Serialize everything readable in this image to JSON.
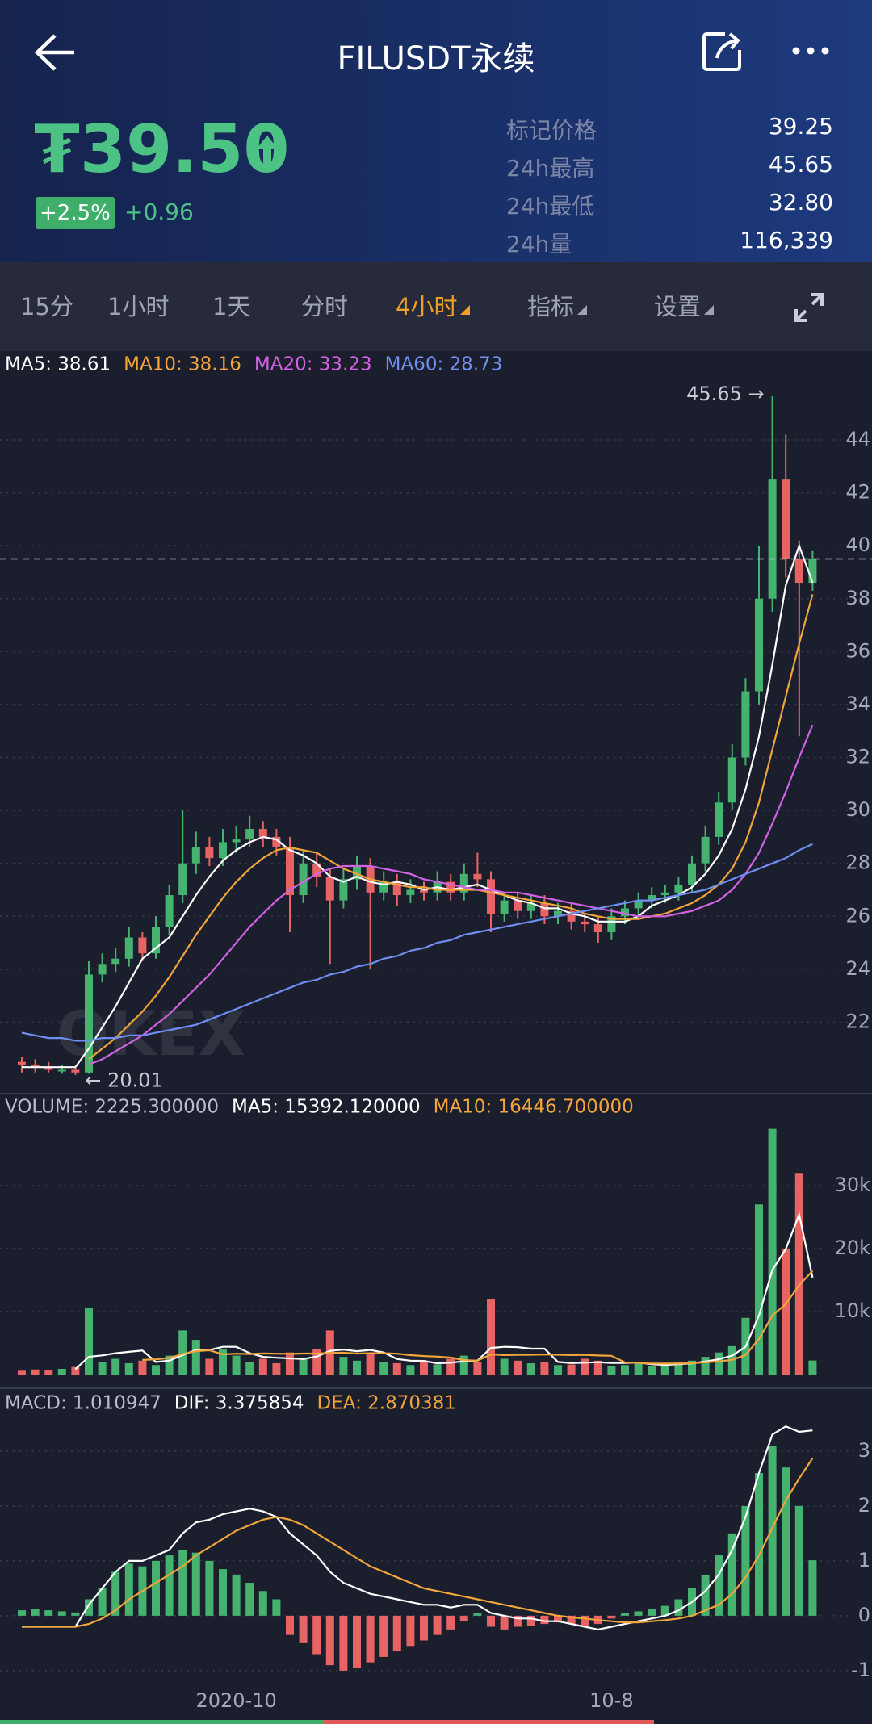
{
  "header": {
    "title": "FILUSDT永续"
  },
  "ticker": {
    "price": "₮39.50",
    "change_pct": "+2.5%",
    "change": "+0.96",
    "stats": [
      {
        "label": "标记价格",
        "value": "39.25"
      },
      {
        "label": "24h最高",
        "value": "45.65"
      },
      {
        "label": "24h最低",
        "value": "32.80"
      },
      {
        "label": "24h量",
        "value": "116,339"
      }
    ]
  },
  "tabs": [
    {
      "label": "15分",
      "dropdown": false
    },
    {
      "label": "1小时",
      "dropdown": false
    },
    {
      "label": "1天",
      "dropdown": false
    },
    {
      "label": "分时",
      "dropdown": false
    },
    {
      "label": "4小时",
      "dropdown": true
    },
    {
      "label": "指标",
      "dropdown": true
    },
    {
      "label": "设置",
      "dropdown": true
    }
  ],
  "active_tab": 4,
  "watermark": "OKEX",
  "chart_data": [
    {
      "type": "candlestick",
      "up_color": "#45b36f",
      "down_color": "#e86464",
      "current_price": 39.5,
      "annotations": [
        {
          "text": "45.65 →",
          "index": 56,
          "value": 45.65
        },
        {
          "text": "← 20.01",
          "index": 4,
          "value": 20.01
        }
      ],
      "open": [
        20.5,
        20.4,
        20.3,
        20.2,
        20.2,
        20.1,
        23.8,
        24.2,
        24.4,
        25.2,
        24.6,
        25.6,
        26.8,
        28.0,
        28.6,
        28.2,
        28.8,
        28.9,
        29.3,
        29.0,
        28.6,
        26.8,
        28.0,
        27.5,
        26.6,
        27.4,
        27.9,
        26.9,
        27.3,
        26.8,
        27.0,
        26.9,
        27.3,
        26.9,
        27.6,
        27.4,
        26.1,
        26.6,
        26.2,
        26.5,
        26.0,
        26.2,
        25.8,
        25.7,
        25.4,
        26.0,
        26.3,
        26.6,
        26.8,
        26.9,
        27.2,
        28.0,
        29.0,
        30.3,
        32.0,
        34.5,
        38.0,
        42.5,
        39.5,
        38.6
      ],
      "high": [
        20.7,
        20.6,
        20.5,
        20.4,
        20.3,
        24.3,
        24.6,
        24.8,
        25.6,
        25.4,
        26.0,
        27.2,
        30.0,
        29.2,
        29.0,
        29.3,
        29.4,
        29.8,
        29.6,
        29.3,
        29.0,
        28.5,
        28.4,
        27.8,
        27.8,
        28.3,
        28.2,
        27.7,
        27.6,
        27.4,
        27.3,
        27.7,
        27.6,
        28.0,
        28.4,
        27.7,
        26.9,
        26.9,
        26.8,
        26.8,
        26.5,
        26.5,
        26.1,
        26.0,
        26.3,
        26.6,
        26.9,
        27.1,
        27.2,
        27.5,
        28.3,
        29.4,
        30.7,
        32.5,
        35.0,
        40.0,
        45.65,
        44.2,
        40.2,
        39.8
      ],
      "low": [
        20.1,
        20.1,
        20.1,
        20.05,
        20.01,
        20.05,
        23.5,
        23.9,
        24.1,
        24.3,
        24.4,
        25.3,
        26.5,
        27.6,
        27.9,
        27.9,
        28.4,
        28.6,
        28.6,
        28.3,
        25.4,
        26.5,
        27.1,
        24.2,
        26.3,
        27.0,
        24.0,
        26.6,
        26.4,
        26.5,
        26.6,
        26.6,
        26.6,
        26.6,
        27.1,
        25.4,
        25.8,
        25.9,
        25.9,
        25.7,
        25.7,
        25.5,
        25.4,
        25.0,
        25.1,
        25.7,
        26.0,
        26.3,
        26.5,
        26.6,
        26.9,
        27.7,
        28.7,
        30.0,
        31.7,
        34.0,
        37.5,
        38.8,
        32.8,
        38.3
      ],
      "close": [
        20.4,
        20.3,
        20.2,
        20.2,
        20.1,
        23.8,
        24.2,
        24.4,
        25.2,
        24.6,
        25.6,
        26.8,
        28.0,
        28.6,
        28.2,
        28.8,
        28.9,
        29.3,
        29.0,
        28.6,
        26.8,
        28.0,
        27.5,
        26.6,
        27.4,
        27.9,
        26.9,
        27.3,
        26.8,
        27.0,
        26.9,
        27.3,
        26.9,
        27.6,
        27.4,
        26.1,
        26.6,
        26.2,
        26.5,
        26.0,
        26.2,
        25.8,
        25.7,
        25.4,
        26.0,
        26.3,
        26.6,
        26.8,
        26.9,
        27.2,
        28.0,
        29.0,
        30.3,
        32.0,
        34.5,
        38.0,
        42.5,
        39.5,
        38.6,
        39.5
      ],
      "series": [
        {
          "name": "MA5: 38.61",
          "color": "#ffffff",
          "values": [
            20.3,
            20.3,
            20.3,
            20.3,
            20.3,
            21.0,
            21.8,
            22.6,
            23.5,
            24.4,
            24.8,
            25.2,
            26.0,
            26.8,
            27.5,
            28.1,
            28.5,
            28.8,
            29.0,
            28.9,
            28.5,
            28.3,
            28.0,
            27.5,
            27.3,
            27.5,
            27.3,
            27.2,
            27.3,
            27.2,
            27.0,
            27.1,
            27.0,
            27.1,
            27.2,
            27.0,
            26.8,
            26.6,
            26.5,
            26.3,
            26.3,
            26.1,
            26.0,
            25.8,
            25.8,
            25.8,
            26.0,
            26.4,
            26.6,
            26.8,
            27.1,
            27.6,
            28.3,
            29.3,
            30.8,
            32.8,
            35.5,
            38.5,
            40.0,
            38.61
          ]
        },
        {
          "name": "MA10: 38.16",
          "color": "#f2a53a",
          "values": [
            null,
            null,
            null,
            null,
            null,
            20.6,
            21.0,
            21.4,
            21.9,
            22.4,
            23.0,
            23.7,
            24.5,
            25.3,
            26.0,
            26.7,
            27.3,
            27.8,
            28.2,
            28.5,
            28.6,
            28.5,
            28.4,
            28.1,
            27.8,
            27.6,
            27.4,
            27.3,
            27.2,
            27.1,
            27.1,
            27.0,
            27.0,
            27.0,
            27.0,
            26.9,
            26.8,
            26.7,
            26.6,
            26.5,
            26.4,
            26.3,
            26.1,
            26.0,
            25.9,
            25.9,
            25.9,
            26.0,
            26.1,
            26.3,
            26.5,
            26.8,
            27.2,
            27.8,
            28.8,
            30.3,
            32.3,
            34.3,
            36.3,
            38.16
          ]
        },
        {
          "name": "MA20: 33.23",
          "color": "#d262e4",
          "values": [
            null,
            null,
            null,
            null,
            null,
            20.4,
            20.6,
            20.9,
            21.2,
            21.5,
            21.9,
            22.3,
            22.8,
            23.3,
            23.8,
            24.4,
            25.0,
            25.6,
            26.1,
            26.6,
            27.0,
            27.3,
            27.6,
            27.8,
            27.9,
            27.9,
            27.9,
            27.8,
            27.7,
            27.6,
            27.4,
            27.3,
            27.2,
            27.1,
            27.0,
            27.0,
            26.9,
            26.9,
            26.8,
            26.7,
            26.6,
            26.5,
            26.4,
            26.3,
            26.2,
            26.1,
            26.0,
            26.0,
            26.0,
            26.1,
            26.2,
            26.4,
            26.6,
            27.0,
            27.6,
            28.4,
            29.5,
            30.7,
            32.0,
            33.23
          ]
        },
        {
          "name": "MA60: 28.73",
          "color": "#6f8ff2",
          "values": [
            21.6,
            21.5,
            21.4,
            21.4,
            21.3,
            21.3,
            21.4,
            21.4,
            21.5,
            21.5,
            21.6,
            21.7,
            21.8,
            21.9,
            22.1,
            22.3,
            22.5,
            22.7,
            22.9,
            23.1,
            23.3,
            23.5,
            23.6,
            23.8,
            23.9,
            24.1,
            24.2,
            24.4,
            24.5,
            24.7,
            24.8,
            25.0,
            25.1,
            25.3,
            25.4,
            25.5,
            25.6,
            25.7,
            25.8,
            25.9,
            26.0,
            26.1,
            26.2,
            26.3,
            26.4,
            26.5,
            26.6,
            26.6,
            26.7,
            26.8,
            26.9,
            27.0,
            27.2,
            27.4,
            27.6,
            27.8,
            28.0,
            28.2,
            28.5,
            28.73
          ]
        }
      ],
      "ylim": [
        19.3,
        46.5
      ],
      "yticks": [
        22,
        24,
        26,
        28,
        30,
        32,
        34,
        36,
        38,
        40,
        42,
        44
      ],
      "grid": true
    },
    {
      "type": "bar",
      "name": "VOLUME: 2225.300000",
      "values": [
        600,
        800,
        700,
        900,
        1200,
        10500,
        2000,
        2500,
        1800,
        2200,
        1500,
        3000,
        7000,
        5500,
        2500,
        4000,
        3000,
        2000,
        2500,
        1800,
        3500,
        2500,
        4000,
        7000,
        2800,
        2200,
        3500,
        2000,
        1800,
        1500,
        2000,
        1600,
        2500,
        3000,
        2000,
        12000,
        2500,
        2200,
        1800,
        2000,
        1500,
        1600,
        2500,
        2200,
        1400,
        1500,
        1800,
        1300,
        1600,
        2000,
        2200,
        2800,
        3500,
        4500,
        9000,
        27000,
        39000,
        20000,
        32000,
        2225.3
      ],
      "series": [
        {
          "name": "MA5: 15392.120000",
          "color": "#ffffff",
          "values": [
            null,
            null,
            null,
            null,
            840,
            2820,
            3040,
            3380,
            3600,
            3800,
            2000,
            2200,
            3100,
            3900,
            3900,
            4400,
            4400,
            3400,
            2800,
            2660,
            2560,
            2460,
            2860,
            3760,
            3960,
            3700,
            3900,
            3500,
            2460,
            2200,
            2160,
            1780,
            1880,
            2120,
            2220,
            4220,
            4400,
            4340,
            4100,
            4100,
            2000,
            1820,
            1880,
            1960,
            1840,
            1840,
            1880,
            1640,
            1520,
            1640,
            1780,
            2080,
            2420,
            3000,
            4400,
            9360,
            16600,
            19900,
            25400,
            15392.12
          ]
        },
        {
          "name": "MA10: 16446.700000",
          "color": "#f2a53a",
          "values": [
            null,
            null,
            null,
            null,
            null,
            null,
            null,
            null,
            null,
            2320,
            2410,
            2630,
            3260,
            3720,
            3850,
            3200,
            3300,
            3250,
            3350,
            3310,
            3280,
            3330,
            3330,
            3430,
            3460,
            3330,
            3380,
            3380,
            3310,
            3080,
            2930,
            2840,
            2690,
            2290,
            2210,
            3190,
            3090,
            3110,
            3140,
            3190,
            3140,
            3090,
            3110,
            3030,
            2970,
            1920,
            1850,
            1760,
            1740,
            1740,
            1810,
            1930,
            2100,
            2330,
            3090,
            5650,
            9370,
            11200,
            14200,
            16446.7
          ]
        }
      ],
      "ylim": [
        0,
        41000
      ],
      "yticks": [
        {
          "value": 10000,
          "label": "10k"
        },
        {
          "value": 20000,
          "label": "20k"
        },
        {
          "value": 30000,
          "label": "30k"
        }
      ],
      "grid": true
    },
    {
      "type": "bar",
      "name": "MACD: 1.010947",
      "up_color": "#45b36f",
      "down_color": "#e86464",
      "categories": [
        null,
        null,
        null,
        null,
        null,
        null,
        null,
        null,
        null,
        null,
        null,
        null,
        null,
        null,
        null,
        null,
        "2020-10",
        null,
        null,
        null,
        null,
        null,
        null,
        null,
        null,
        null,
        null,
        null,
        null,
        null,
        null,
        null,
        null,
        null,
        null,
        null,
        null,
        null,
        null,
        null,
        null,
        null,
        null,
        null,
        "10-8",
        null,
        null,
        null,
        null,
        null,
        null,
        null,
        null,
        null,
        null,
        null,
        null,
        null,
        null,
        null
      ],
      "values": [
        0.1,
        0.12,
        0.1,
        0.08,
        0.06,
        0.3,
        0.5,
        0.8,
        0.95,
        0.9,
        1.0,
        1.1,
        1.2,
        1.15,
        1.0,
        0.85,
        0.75,
        0.6,
        0.45,
        0.3,
        -0.35,
        -0.5,
        -0.7,
        -0.9,
        -1.0,
        -0.95,
        -0.85,
        -0.75,
        -0.65,
        -0.55,
        -0.45,
        -0.35,
        -0.25,
        -0.1,
        0.05,
        -0.2,
        -0.25,
        -0.2,
        -0.18,
        -0.15,
        -0.12,
        -0.15,
        -0.18,
        -0.15,
        -0.05,
        0.05,
        0.08,
        0.12,
        0.18,
        0.3,
        0.5,
        0.75,
        1.1,
        1.5,
        2.0,
        2.6,
        3.1,
        2.7,
        2.0,
        1.010947
      ],
      "series": [
        {
          "name": "DIF: 3.375854",
          "color": "#ffffff",
          "values": [
            -0.2,
            -0.2,
            -0.2,
            -0.2,
            -0.2,
            0.2,
            0.5,
            0.8,
            1.0,
            1.0,
            1.1,
            1.2,
            1.5,
            1.7,
            1.75,
            1.85,
            1.9,
            1.95,
            1.9,
            1.8,
            1.5,
            1.3,
            1.1,
            0.8,
            0.6,
            0.5,
            0.4,
            0.35,
            0.3,
            0.25,
            0.2,
            0.2,
            0.15,
            0.2,
            0.2,
            0.05,
            0.0,
            -0.05,
            -0.05,
            -0.1,
            -0.1,
            -0.15,
            -0.2,
            -0.25,
            -0.2,
            -0.15,
            -0.1,
            -0.05,
            0.0,
            0.1,
            0.25,
            0.45,
            0.75,
            1.2,
            1.8,
            2.6,
            3.3,
            3.45,
            3.35,
            3.375854
          ]
        },
        {
          "name": "DEA: 2.870381",
          "color": "#f2a53a",
          "values": [
            -0.2,
            -0.2,
            -0.2,
            -0.2,
            -0.2,
            -0.15,
            -0.05,
            0.1,
            0.3,
            0.45,
            0.6,
            0.75,
            0.9,
            1.1,
            1.25,
            1.4,
            1.55,
            1.65,
            1.75,
            1.8,
            1.75,
            1.65,
            1.5,
            1.35,
            1.2,
            1.05,
            0.9,
            0.8,
            0.7,
            0.6,
            0.5,
            0.45,
            0.4,
            0.35,
            0.3,
            0.25,
            0.2,
            0.15,
            0.1,
            0.05,
            0.0,
            -0.03,
            -0.05,
            -0.08,
            -0.1,
            -0.12,
            -0.12,
            -0.1,
            -0.08,
            -0.05,
            0.0,
            0.1,
            0.2,
            0.4,
            0.7,
            1.1,
            1.6,
            2.1,
            2.5,
            2.870381
          ]
        }
      ],
      "ylim": [
        -1.31,
        3.6
      ],
      "yticks": [
        3,
        2,
        1,
        0,
        -1
      ],
      "grid": true
    }
  ]
}
